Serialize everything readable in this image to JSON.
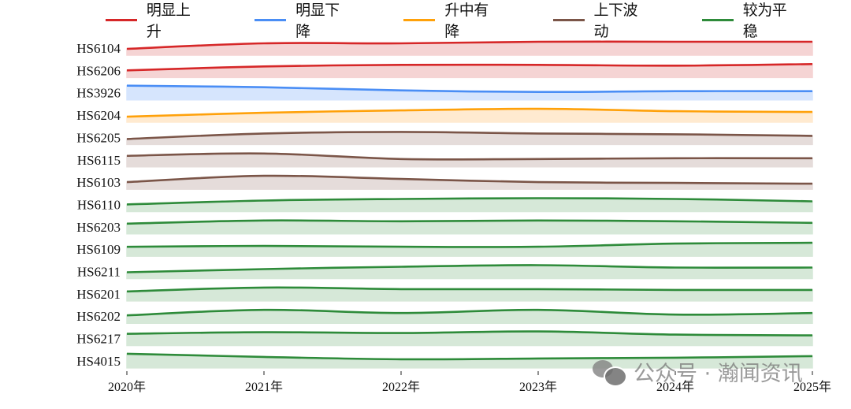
{
  "chart_data": {
    "type": "area",
    "title": "",
    "xlabel": "",
    "ylabel": "",
    "x": [
      "2020年",
      "2021年",
      "2022年",
      "2023年",
      "2024年",
      "2025年"
    ],
    "legend": [
      {
        "name": "明显上升",
        "color": "#d62728",
        "fill": "#f5d4d4"
      },
      {
        "name": "明显下降",
        "color": "#4a8ef5",
        "fill": "#d6e5fd"
      },
      {
        "name": "升中有降",
        "color": "#ffa10a",
        "fill": "#ffead0"
      },
      {
        "name": "上下波动",
        "color": "#7b5548",
        "fill": "#e5dcda"
      },
      {
        "name": "较为平稳",
        "color": "#2e8b3a",
        "fill": "#d6e8d8"
      }
    ],
    "legend_position": "top",
    "grid": false,
    "value_note": "Relative normalized trend within each row band (0 = band baseline, 1 = band top); no numeric y-axis shown",
    "series": [
      {
        "name": "HS6104",
        "category": "明显上升",
        "values": [
          0.4,
          0.75,
          0.75,
          0.85,
          0.85,
          0.85
        ]
      },
      {
        "name": "HS6206",
        "category": "明显上升",
        "values": [
          0.45,
          0.7,
          0.8,
          0.8,
          0.75,
          0.85
        ]
      },
      {
        "name": "HS3926",
        "category": "明显下降",
        "values": [
          0.9,
          0.8,
          0.6,
          0.5,
          0.55,
          0.55
        ]
      },
      {
        "name": "HS6204",
        "category": "升中有降",
        "values": [
          0.35,
          0.6,
          0.75,
          0.85,
          0.7,
          0.65
        ]
      },
      {
        "name": "HS6205",
        "category": "上下波动",
        "values": [
          0.35,
          0.7,
          0.8,
          0.7,
          0.65,
          0.55
        ]
      },
      {
        "name": "HS6115",
        "category": "上下波动",
        "values": [
          0.7,
          0.85,
          0.5,
          0.5,
          0.55,
          0.55
        ]
      },
      {
        "name": "HS6103",
        "category": "上下波动",
        "values": [
          0.45,
          0.85,
          0.65,
          0.45,
          0.4,
          0.35
        ]
      },
      {
        "name": "HS6110",
        "category": "较为平稳",
        "values": [
          0.45,
          0.7,
          0.8,
          0.85,
          0.8,
          0.65
        ]
      },
      {
        "name": "HS6203",
        "category": "较为平稳",
        "values": [
          0.65,
          0.85,
          0.8,
          0.85,
          0.8,
          0.7
        ]
      },
      {
        "name": "HS6109",
        "category": "较为平稳",
        "values": [
          0.6,
          0.65,
          0.6,
          0.6,
          0.8,
          0.85
        ]
      },
      {
        "name": "HS6211",
        "category": "较为平稳",
        "values": [
          0.4,
          0.6,
          0.75,
          0.85,
          0.7,
          0.7
        ]
      },
      {
        "name": "HS6201",
        "category": "较为平稳",
        "values": [
          0.6,
          0.85,
          0.75,
          0.75,
          0.7,
          0.7
        ]
      },
      {
        "name": "HS6202",
        "category": "较为平稳",
        "values": [
          0.5,
          0.85,
          0.65,
          0.85,
          0.55,
          0.65
        ]
      },
      {
        "name": "HS6217",
        "category": "较为平稳",
        "values": [
          0.75,
          0.85,
          0.8,
          0.9,
          0.7,
          0.65
        ]
      },
      {
        "name": "HS4015",
        "category": "较为平稳",
        "values": [
          0.9,
          0.7,
          0.55,
          0.6,
          0.65,
          0.75
        ]
      }
    ]
  },
  "watermark": {
    "text": "公众号 · 瀚闻资讯",
    "icon": "wechat-icon"
  }
}
